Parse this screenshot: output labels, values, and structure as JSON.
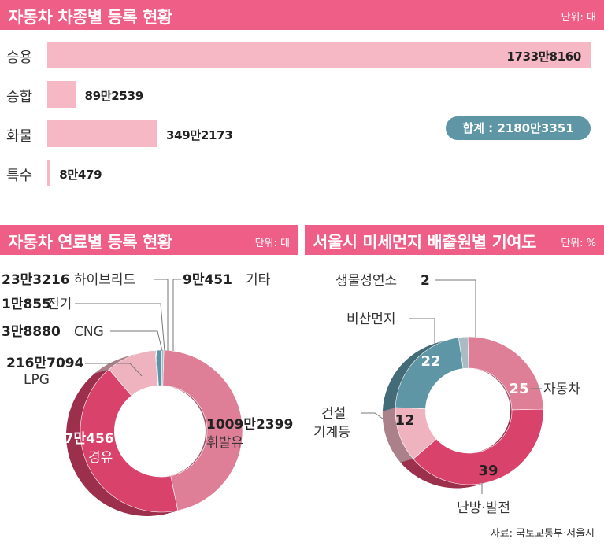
{
  "section1": {
    "title": "자동차 차종별 등록 현황",
    "unit": "단위: 대",
    "total_label": "합계 : 2180만3351"
  },
  "section2": {
    "title": "자동차 연료별 등록 현황",
    "unit": "단위: 대"
  },
  "section3": {
    "title": "서울시 미세먼지 배출원별 기여도",
    "unit": "단위: %"
  },
  "source": "자료: 국토교통부·서울시",
  "colors": {
    "banner": "#ee5e86",
    "bar": "#f7b8c6",
    "total_badge": "#5e96a6"
  },
  "chart_data": [
    {
      "type": "bar",
      "orientation": "horizontal",
      "categories": [
        "승용",
        "승합",
        "화물",
        "특수"
      ],
      "values": [
        17338160,
        892539,
        3492173,
        80479
      ],
      "value_labels": [
        "1733만8160",
        "89만2539",
        "349만2173",
        "8만479"
      ]
    },
    {
      "type": "pie",
      "style": "donut",
      "slices": [
        {
          "label": "휘발유",
          "value": 10092399,
          "value_label": "1009만2399",
          "color": "#df7f97"
        },
        {
          "label": "경유",
          "value": 9170456,
          "value_label": "917만456",
          "color": "#d9436b"
        },
        {
          "label": "LPG",
          "value": 2167094,
          "value_label": "216만7094",
          "color": "#eeb3bf"
        },
        {
          "label": "CNG",
          "value": 38880,
          "value_label": "3만8880",
          "color": "#7a8f97"
        },
        {
          "label": "전기",
          "value": 10855,
          "value_label": "1만855",
          "color": "#4f7d8d"
        },
        {
          "label": "하이브리드",
          "value": 233216,
          "value_label": "23만3216",
          "color": "#5b94a6"
        },
        {
          "label": "기타",
          "value": 90451,
          "value_label": "9만451",
          "color": "#a9bcc3"
        }
      ]
    },
    {
      "type": "pie",
      "style": "donut",
      "slices": [
        {
          "label": "자동차",
          "value": 25,
          "value_label": "25",
          "color": "#df7f97"
        },
        {
          "label": "난방·발전",
          "value": 39,
          "value_label": "39",
          "color": "#d9436b"
        },
        {
          "label": "건설\n기계등",
          "value": 12,
          "value_label": "12",
          "color": "#eeb3bf"
        },
        {
          "label": "비산먼지",
          "value": 22,
          "value_label": "22",
          "color": "#5e96a6"
        },
        {
          "label": "생물성연소",
          "value": 2,
          "value_label": "2",
          "color": "#a9bcc3"
        }
      ]
    }
  ]
}
